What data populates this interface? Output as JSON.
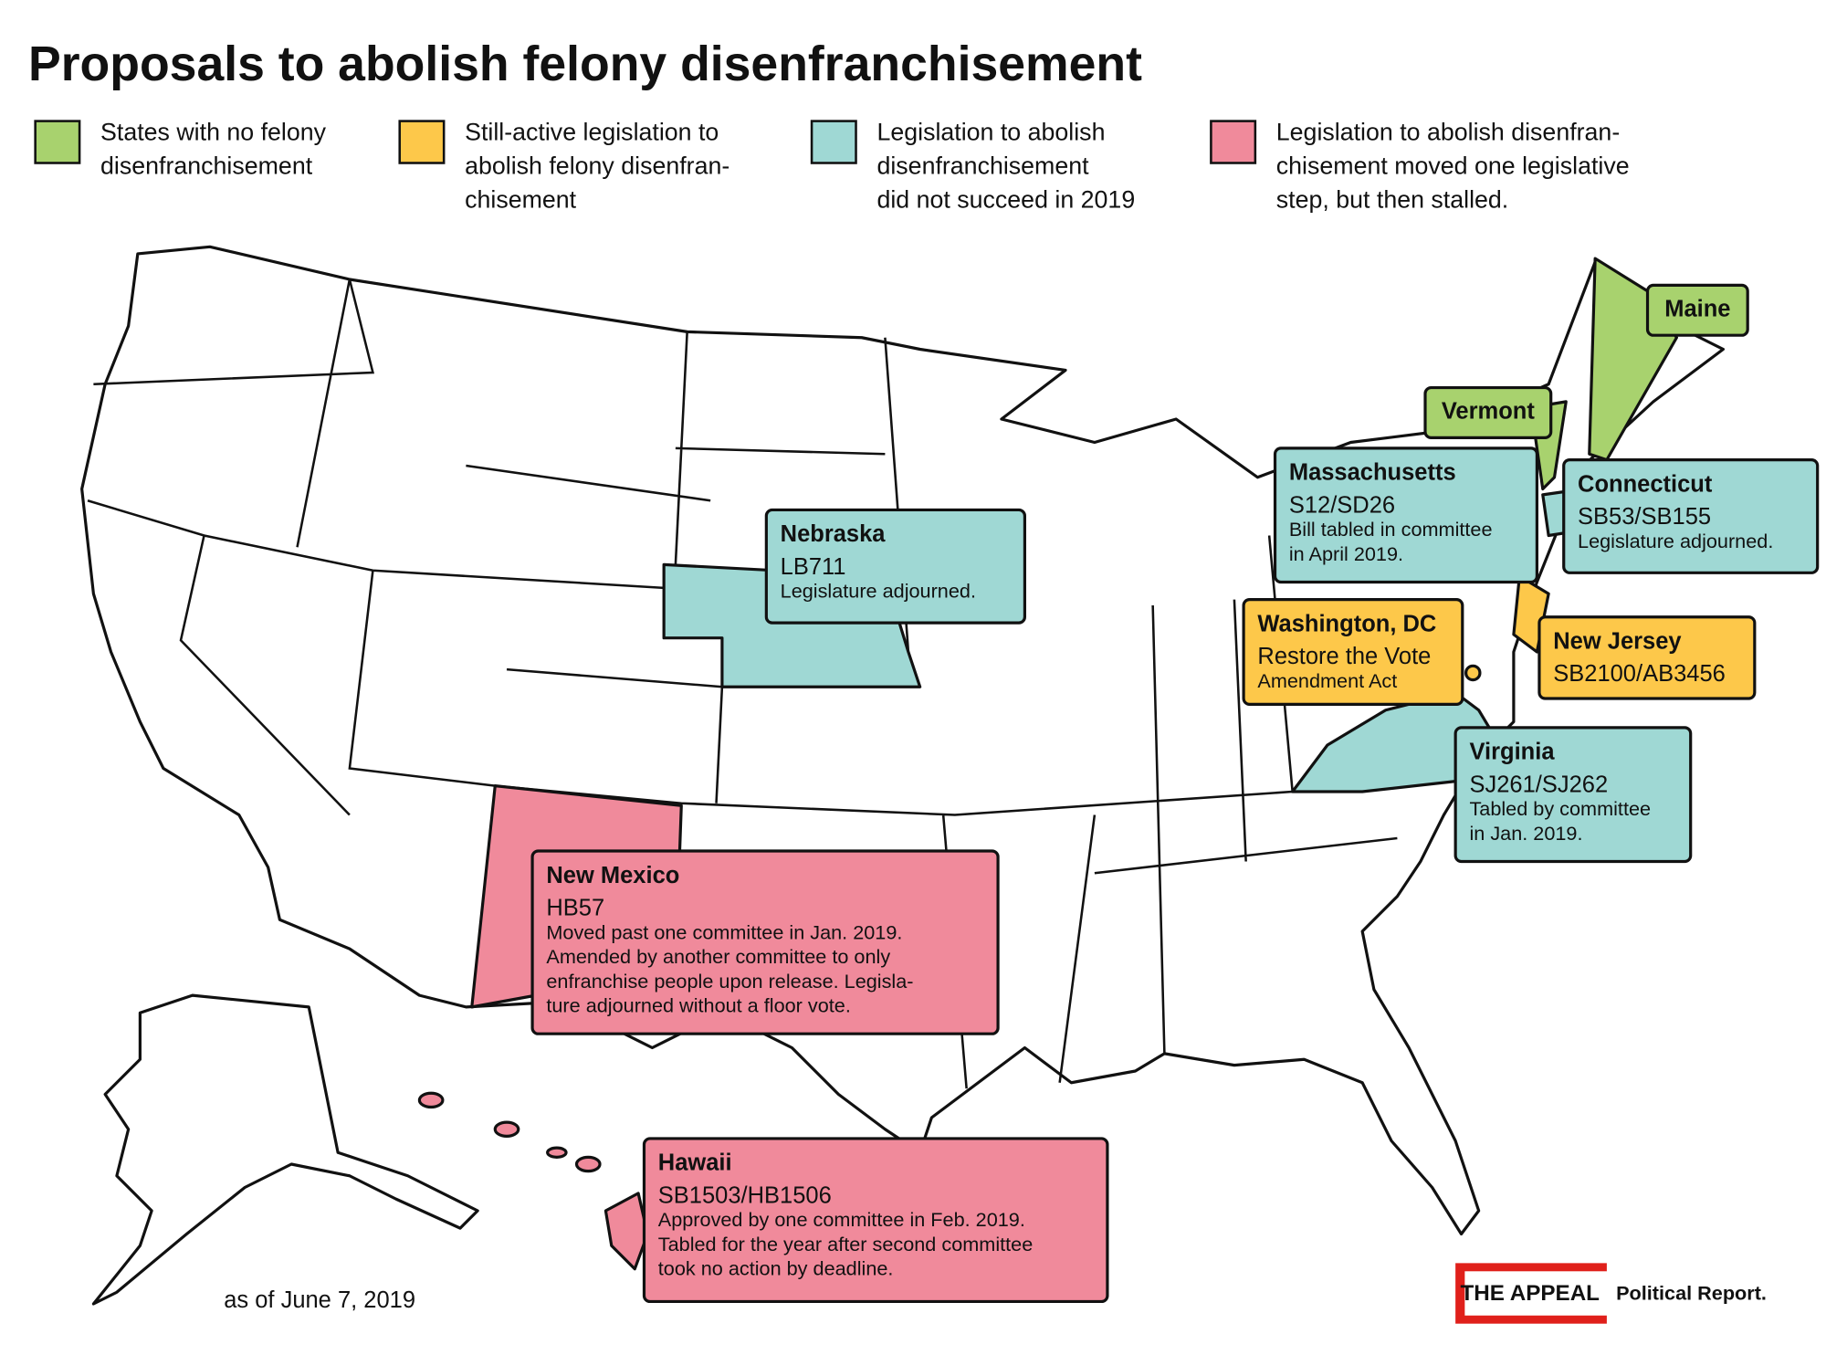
{
  "title": "Proposals to abolish felony disenfranchisement",
  "legend": [
    {
      "lines": [
        "States with no felony",
        "disenfranchisement"
      ],
      "color": "#a8d26e"
    },
    {
      "lines": [
        "Still-active legislation to",
        "abolish felony disenfran-",
        "chisement"
      ],
      "color": "#fdc84a"
    },
    {
      "lines": [
        "Legislation to abolish",
        "disenfranchisement",
        "did not succeed in 2019"
      ],
      "color": "#9fd8d4"
    },
    {
      "lines": [
        "Legislation to abolish disenfran-",
        "chisement moved one legislative",
        "step, but then stalled."
      ],
      "color": "#f08a9b"
    }
  ],
  "callouts": [
    {
      "lines": [
        "Maine"
      ]
    },
    {
      "lines": [
        "Vermont"
      ]
    },
    {
      "lines": [
        "Massachusetts",
        "S12/SD26",
        "Bill tabled in committee",
        "in April 2019."
      ]
    },
    {
      "lines": [
        "Connecticut",
        "SB53/SB155",
        "Legislature adjourned."
      ]
    },
    {
      "lines": [
        "Nebraska",
        "LB711",
        "Legislature adjourned."
      ]
    },
    {
      "lines": [
        "Washington, DC",
        "Restore the Vote",
        "Amendment Act"
      ]
    },
    {
      "lines": [
        "New Jersey",
        "SB2100/AB3456"
      ]
    },
    {
      "lines": [
        "Virginia",
        "SJ261/SJ262",
        "Tabled by committee",
        "in Jan. 2019."
      ]
    },
    {
      "lines": [
        "New Mexico",
        "HB57",
        "Moved past one committee in Jan. 2019.",
        "Amended by another committee to only",
        "enfranchise people upon release. Legisla-",
        "ture adjourned without a floor vote."
      ]
    },
    {
      "lines": [
        "Hawaii",
        "SB1503/HB1506",
        "Approved by one committee in Feb. 2019.",
        "Tabled for the year after second committee",
        "took no action by deadline."
      ]
    }
  ],
  "note": "as of June 7, 2019",
  "logo": {
    "brand": "THE APPEAL",
    "sub": "Political Report."
  }
}
